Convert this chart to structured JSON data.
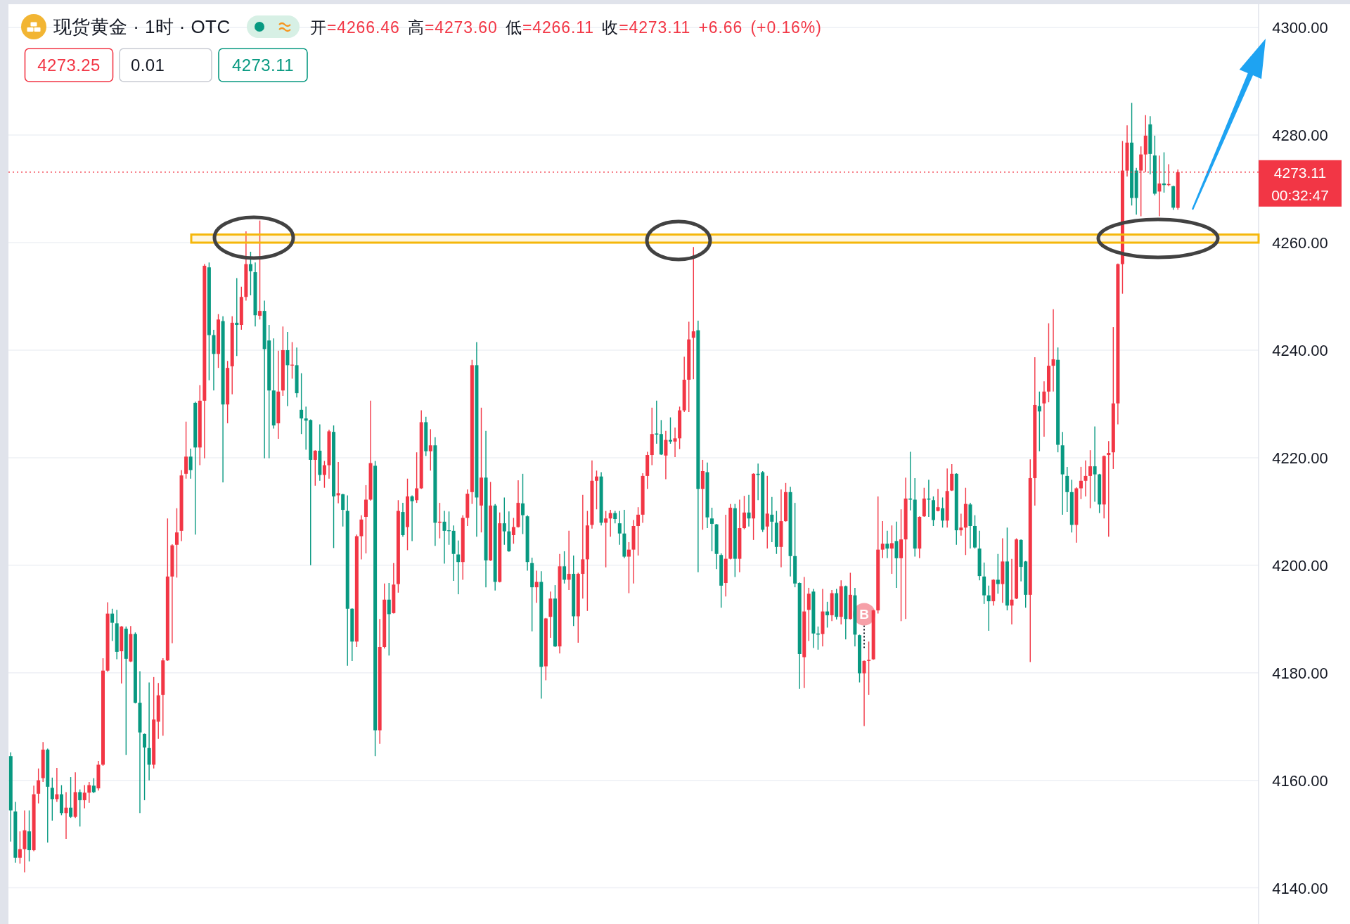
{
  "chart_data": {
    "type": "candlestick",
    "title": "现货黄金 · 1时 · OTC",
    "subtitle": "开=4266.46 高=4273.60 低=4266.11 收=4273.11 +6.66 (+0.16%)",
    "categories": [
      null,
      null,
      null,
      null,
      null,
      null,
      null,
      null,
      null,
      null,
      null,
      null,
      null,
      null,
      null,
      null,
      null,
      null,
      null,
      null,
      null,
      null,
      null,
      null,
      null,
      null,
      null,
      null,
      null,
      null,
      null,
      null,
      null,
      null,
      null,
      null,
      null,
      null,
      null,
      null,
      null,
      null,
      null,
      null,
      null,
      null,
      null,
      null,
      null,
      null,
      null,
      null,
      null,
      null,
      null,
      null,
      null,
      null,
      null,
      null,
      null,
      null,
      null,
      null,
      null,
      null,
      null,
      null,
      null,
      null,
      null,
      null,
      null,
      null,
      null,
      null,
      null,
      null,
      null,
      null,
      null,
      null,
      null,
      null,
      null,
      null,
      null,
      null,
      null,
      null,
      null,
      null,
      null,
      null,
      null,
      null,
      null,
      null,
      null,
      null,
      null,
      null,
      null,
      null,
      null,
      null,
      null,
      null,
      null,
      null,
      null,
      null,
      null,
      null,
      null,
      null,
      null,
      null,
      null,
      null,
      null,
      null,
      null,
      null,
      null,
      null,
      null,
      null,
      null,
      null,
      null,
      null,
      null,
      null,
      null,
      null,
      null,
      null,
      null,
      null,
      null,
      null,
      null,
      null,
      null,
      null,
      null,
      null,
      null,
      null,
      null,
      null,
      null,
      null,
      null,
      null,
      null,
      null,
      null,
      null,
      null,
      null,
      null,
      null,
      null,
      null,
      null,
      null,
      null,
      null,
      null,
      null,
      null,
      null,
      null,
      null,
      null,
      null,
      null,
      null,
      null,
      null,
      null,
      null,
      null,
      null,
      null,
      null,
      null,
      null,
      null,
      null,
      null,
      null,
      null,
      null,
      null,
      null,
      null,
      null,
      null,
      null,
      null,
      null,
      null,
      null,
      null,
      null,
      null,
      null,
      null,
      null,
      null,
      null,
      null,
      null,
      null,
      null,
      null,
      null,
      null,
      null,
      null,
      null,
      null,
      null,
      null,
      null,
      null,
      null,
      null,
      null,
      null,
      null,
      null,
      null,
      null,
      null,
      null,
      null,
      null,
      null,
      null,
      null,
      null,
      null,
      null,
      null,
      null,
      null,
      null,
      null,
      null,
      null,
      null,
      null,
      null,
      null,
      null,
      null,
      null,
      null,
      null,
      null,
      null,
      null,
      null,
      null,
      null,
      null,
      null
    ],
    "ohlc": [
      [
        4164.5,
        4165.2,
        4148.6,
        4154.4
      ],
      [
        4154.2,
        4156.0,
        4144.7,
        4145.6
      ],
      [
        4145.6,
        4150.5,
        4144.5,
        4147.2
      ],
      [
        4147.2,
        4154.4,
        4142.9,
        4150.7
      ],
      [
        4150.5,
        4154.4,
        4144.9,
        4147.0
      ],
      [
        4147.0,
        4159.0,
        4146.8,
        4157.4
      ],
      [
        4157.5,
        4162.2,
        4155.7,
        4160.0
      ],
      [
        4160.4,
        4167.1,
        4159.7,
        4165.7
      ],
      [
        4165.7,
        4165.9,
        4148.4,
        4158.8
      ],
      [
        4158.6,
        4160.5,
        4152.5,
        4156.5
      ],
      [
        4156.5,
        4162.3,
        4156.0,
        4157.4
      ],
      [
        4157.4,
        4159.1,
        4153.5,
        4153.9
      ],
      [
        4153.9,
        4157.8,
        4149.1,
        4154.9
      ],
      [
        4154.9,
        4160.6,
        4153.0,
        4153.2
      ],
      [
        4153.2,
        4161.5,
        4153.0,
        4157.8
      ],
      [
        4157.8,
        4158.3,
        4151.4,
        4156.3
      ],
      [
        4156.3,
        4159.1,
        4154.8,
        4157.7
      ],
      [
        4157.7,
        4159.7,
        4155.8,
        4159.1
      ],
      [
        4159.0,
        4160.4,
        4157.6,
        4157.8
      ],
      [
        4158.5,
        4163.6,
        4158.1,
        4162.9
      ],
      [
        4162.9,
        4182.7,
        4162.7,
        4180.4
      ],
      [
        4180.4,
        4193.1,
        4180.2,
        4191.0
      ],
      [
        4191.0,
        4191.9,
        4185.9,
        4189.3
      ],
      [
        4189.2,
        4191.7,
        4182.5,
        4183.9
      ],
      [
        4184.0,
        4188.7,
        4178.0,
        4188.6
      ],
      [
        4188.2,
        4188.6,
        4164.7,
        4182.6
      ],
      [
        4182.1,
        4188.7,
        4182.0,
        4187.2
      ],
      [
        4187.2,
        4187.5,
        4174.3,
        4174.4
      ],
      [
        4174.4,
        4180.3,
        4153.9,
        4168.9
      ],
      [
        4168.6,
        4168.7,
        4156.3,
        4166.1
      ],
      [
        4166.0,
        4178.2,
        4160.0,
        4162.9
      ],
      [
        4162.9,
        4179.2,
        4162.2,
        4171.3
      ],
      [
        4170.9,
        4178.1,
        4167.7,
        4175.8
      ],
      [
        4175.9,
        4182.7,
        4168.3,
        4182.3
      ],
      [
        4182.3,
        4208.7,
        4182.2,
        4197.9
      ],
      [
        4197.9,
        4203.9,
        4185.5,
        4203.7
      ],
      [
        4203.8,
        4210.6,
        4197.7,
        4206.1
      ],
      [
        4206.4,
        4217.7,
        4204.5,
        4216.7
      ],
      [
        4217.0,
        4226.7,
        4216.1,
        4220.2
      ],
      [
        4220.2,
        4221.7,
        4216.1,
        4217.7
      ],
      [
        4230.2,
        4230.4,
        4205.7,
        4221.9
      ],
      [
        4221.9,
        4233.5,
        4218.6,
        4230.6
      ],
      [
        4230.6,
        4256.0,
        4219.9,
        4255.7
      ],
      [
        4255.4,
        4256.3,
        4234.4,
        4242.8
      ],
      [
        4242.8,
        4243.8,
        4232.5,
        4239.3
      ],
      [
        4239.3,
        4246.7,
        4236.7,
        4245.7
      ],
      [
        4245.4,
        4246.3,
        4215.4,
        4229.9
      ],
      [
        4229.9,
        4238.0,
        4226.4,
        4236.7
      ],
      [
        4237.0,
        4246.3,
        4231.8,
        4245.1
      ],
      [
        4245.1,
        4253.4,
        4238.9,
        4244.7
      ],
      [
        4244.7,
        4251.8,
        4243.8,
        4249.9
      ],
      [
        4249.9,
        4262.1,
        4249.2,
        4256.0
      ],
      [
        4256.0,
        4258.3,
        4250.2,
        4254.7
      ],
      [
        4254.5,
        4256.3,
        4244.4,
        4246.5
      ],
      [
        4246.4,
        4264.1,
        4245.7,
        4247.3
      ],
      [
        4247.3,
        4249.2,
        4219.9,
        4240.2
      ],
      [
        4241.8,
        4244.7,
        4219.9,
        4232.5
      ],
      [
        4232.5,
        4242.2,
        4225.4,
        4226.0
      ],
      [
        4226.4,
        4239.9,
        4223.5,
        4232.3
      ],
      [
        4232.5,
        4244.4,
        4231.5,
        4240.0
      ],
      [
        4240.0,
        4243.4,
        4229.6,
        4237.2
      ],
      [
        4237.2,
        4241.5,
        4234.7,
        4237.3
      ],
      [
        4237.2,
        4240.5,
        4231.2,
        4232.0
      ],
      [
        4228.9,
        4235.7,
        4224.4,
        4227.3
      ],
      [
        4227.3,
        4229.5,
        4221.5,
        4226.9
      ],
      [
        4227.0,
        4227.1,
        4200.0,
        4219.6
      ],
      [
        4219.6,
        4221.4,
        4214.8,
        4221.3
      ],
      [
        4221.3,
        4226.2,
        4215.7,
        4216.8
      ],
      [
        4216.8,
        4219.4,
        4214.4,
        4218.6
      ],
      [
        4218.6,
        4225.2,
        4216.1,
        4224.9
      ],
      [
        4224.8,
        4226.0,
        4203.2,
        4212.8
      ],
      [
        4213.0,
        4219.2,
        4211.5,
        4213.4
      ],
      [
        4213.2,
        4213.3,
        4207.2,
        4210.3
      ],
      [
        4210.1,
        4213.0,
        4181.3,
        4191.9
      ],
      [
        4191.9,
        4192.0,
        4182.2,
        4185.8
      ],
      [
        4185.8,
        4205.7,
        4184.8,
        4205.4
      ],
      [
        4205.4,
        4209.3,
        4201.1,
        4208.5
      ],
      [
        4209.0,
        4214.9,
        4202.2,
        4212.2
      ],
      [
        4212.2,
        4230.6,
        4212.0,
        4219.0
      ],
      [
        4218.5,
        4219.4,
        4164.5,
        4169.3
      ],
      [
        4169.3,
        4190.0,
        4166.8,
        4184.8
      ],
      [
        4184.8,
        4196.6,
        4184.5,
        4193.6
      ],
      [
        4193.6,
        4196.7,
        4183.2,
        4190.9
      ],
      [
        4191.1,
        4200.4,
        4191.0,
        4196.4
      ],
      [
        4196.5,
        4212.1,
        4194.9,
        4210.1
      ],
      [
        4209.9,
        4211.6,
        4205.3,
        4205.6
      ],
      [
        4207.1,
        4216.1,
        4202.8,
        4212.8
      ],
      [
        4212.8,
        4213.0,
        4204.5,
        4211.9
      ],
      [
        4212.1,
        4221.0,
        4211.6,
        4214.3
      ],
      [
        4214.3,
        4228.8,
        4214.2,
        4226.6
      ],
      [
        4226.6,
        4227.6,
        4220.3,
        4221.2
      ],
      [
        4221.2,
        4225.3,
        4217.6,
        4222.3
      ],
      [
        4222.3,
        4223.8,
        4203.6,
        4207.9
      ],
      [
        4207.9,
        4211.6,
        4205.0,
        4208.1
      ],
      [
        4208.1,
        4210.1,
        4200.3,
        4206.4
      ],
      [
        4206.5,
        4210.0,
        4203.8,
        4206.4
      ],
      [
        4206.4,
        4207.4,
        4197.1,
        4202.1
      ],
      [
        4202.0,
        4204.6,
        4194.6,
        4200.6
      ],
      [
        4200.6,
        4209.3,
        4197.3,
        4208.8
      ],
      [
        4208.8,
        4214.1,
        4207.3,
        4213.3
      ],
      [
        4213.6,
        4238.2,
        4211.4,
        4237.2
      ],
      [
        4237.2,
        4241.5,
        4205.3,
        4212.6
      ],
      [
        4211.1,
        4229.3,
        4206.1,
        4216.3
      ],
      [
        4216.3,
        4225.0,
        4195.9,
        4200.9
      ],
      [
        4200.9,
        4215.5,
        4200.8,
        4211.1
      ],
      [
        4211.1,
        4211.4,
        4195.3,
        4196.9
      ],
      [
        4196.9,
        4209.8,
        4196.8,
        4207.8
      ],
      [
        4207.8,
        4212.6,
        4203.8,
        4206.3
      ],
      [
        4206.3,
        4210.0,
        4202.5,
        4202.6
      ],
      [
        4205.6,
        4208.8,
        4204.0,
        4207.1
      ],
      [
        4207.1,
        4215.8,
        4207.0,
        4211.6
      ],
      [
        4211.5,
        4217.0,
        4205.8,
        4209.3
      ],
      [
        4209.1,
        4209.3,
        4199.0,
        4200.6
      ],
      [
        4200.4,
        4201.4,
        4187.7,
        4195.9
      ],
      [
        4195.9,
        4199.0,
        4193.0,
        4196.9
      ],
      [
        4196.9,
        4198.9,
        4175.2,
        4181.1
      ],
      [
        4181.2,
        4190.2,
        4178.6,
        4190.1
      ],
      [
        4190.4,
        4195.1,
        4186.5,
        4193.8
      ],
      [
        4193.8,
        4196.3,
        4184.8,
        4184.9
      ],
      [
        4184.9,
        4202.1,
        4183.6,
        4199.8
      ],
      [
        4199.8,
        4202.6,
        4196.6,
        4197.3
      ],
      [
        4197.3,
        4206.4,
        4195.4,
        4198.4
      ],
      [
        4198.4,
        4201.8,
        4188.7,
        4190.5
      ],
      [
        4190.5,
        4198.6,
        4185.6,
        4198.4
      ],
      [
        4198.4,
        4213.1,
        4193.8,
        4201.1
      ],
      [
        4201.1,
        4210.1,
        4191.5,
        4207.4
      ],
      [
        4207.5,
        4219.5,
        4206.8,
        4215.7
      ],
      [
        4215.7,
        4217.6,
        4210.4,
        4216.5
      ],
      [
        4216.5,
        4217.3,
        4207.4,
        4207.9
      ],
      [
        4207.9,
        4210.1,
        4199.6,
        4208.7
      ],
      [
        4208.7,
        4210.3,
        4205.3,
        4209.7
      ],
      [
        4209.7,
        4210.1,
        4207.8,
        4208.6
      ],
      [
        4207.8,
        4210.1,
        4203.8,
        4205.9
      ],
      [
        4205.9,
        4210.3,
        4201.3,
        4201.6
      ],
      [
        4201.6,
        4204.3,
        4194.8,
        4202.9
      ],
      [
        4202.9,
        4208.4,
        4196.6,
        4207.3
      ],
      [
        4207.3,
        4210.8,
        4201.8,
        4209.4
      ],
      [
        4209.4,
        4217.1,
        4207.9,
        4216.6
      ],
      [
        4216.6,
        4221.1,
        4214.2,
        4220.5
      ],
      [
        4220.5,
        4229.3,
        4218.6,
        4224.4
      ],
      [
        4224.5,
        4230.6,
        4222.6,
        4224.3
      ],
      [
        4224.4,
        4227.0,
        4220.5,
        4220.6
      ],
      [
        4220.4,
        4225.0,
        4216.0,
        4223.3
      ],
      [
        4223.3,
        4227.5,
        4222.6,
        4223.0
      ],
      [
        4223.0,
        4225.6,
        4220.1,
        4223.6
      ],
      [
        4223.6,
        4229.5,
        4221.6,
        4228.8
      ],
      [
        4228.8,
        4238.8,
        4228.5,
        4234.5
      ],
      [
        4234.5,
        4245.3,
        4228.5,
        4242.0
      ],
      [
        4242.3,
        4259.2,
        4234.6,
        4243.5
      ],
      [
        4243.7,
        4245.5,
        4198.7,
        4214.2
      ],
      [
        4214.2,
        4219.6,
        4206.6,
        4217.5
      ],
      [
        4217.3,
        4219.1,
        4206.9,
        4208.9
      ],
      [
        4208.7,
        4210.7,
        4202.6,
        4207.7
      ],
      [
        4207.6,
        4207.7,
        4199.3,
        4202.1
      ],
      [
        4201.9,
        4202.2,
        4192.1,
        4196.2
      ],
      [
        4196.7,
        4209.4,
        4194.2,
        4201.2
      ],
      [
        4201.2,
        4211.4,
        4201.1,
        4210.7
      ],
      [
        4210.6,
        4211.4,
        4197.8,
        4201.2
      ],
      [
        4201.2,
        4212.2,
        4198.7,
        4206.9
      ],
      [
        4206.9,
        4212.9,
        4206.7,
        4209.8
      ],
      [
        4209.8,
        4213.1,
        4207.2,
        4208.7
      ],
      [
        4208.7,
        4217.1,
        4204.7,
        4217.0
      ],
      [
        4217.0,
        4218.9,
        4212.1,
        4216.8
      ],
      [
        4217.3,
        4217.5,
        4206.2,
        4206.6
      ],
      [
        4207.2,
        4216.6,
        4203.1,
        4209.6
      ],
      [
        4209.4,
        4212.7,
        4204.3,
        4208.1
      ],
      [
        4207.9,
        4210.1,
        4202.1,
        4203.4
      ],
      [
        4203.4,
        4214.1,
        4199.6,
        4208.2
      ],
      [
        4208.2,
        4215.3,
        4208.1,
        4213.6
      ],
      [
        4213.6,
        4214.6,
        4197.9,
        4201.7
      ],
      [
        4201.7,
        4211.6,
        4195.9,
        4196.6
      ],
      [
        4196.7,
        4196.8,
        4177.0,
        4183.5
      ],
      [
        4182.9,
        4197.8,
        4177.2,
        4191.4
      ],
      [
        4191.7,
        4195.8,
        4185.9,
        4194.7
      ],
      [
        4195.1,
        4195.6,
        4184.6,
        4187.3
      ],
      [
        4187.3,
        4188.6,
        4184.3,
        4187.1
      ],
      [
        4187.2,
        4195.6,
        4184.9,
        4191.4
      ],
      [
        4191.4,
        4193.2,
        4188.4,
        4190.7
      ],
      [
        4190.7,
        4195.4,
        4189.6,
        4194.8
      ],
      [
        4194.8,
        4195.6,
        4189.9,
        4190.4
      ],
      [
        4190.4,
        4197.2,
        4189.0,
        4196.1
      ],
      [
        4196.1,
        4196.2,
        4186.2,
        4190.0
      ],
      [
        4190.0,
        4198.6,
        4189.9,
        4194.5
      ],
      [
        4194.4,
        4195.8,
        4184.9,
        4187.1
      ],
      [
        4187.0,
        4187.1,
        4178.2,
        4179.9
      ],
      [
        4179.9,
        4182.3,
        4170.1,
        4182.2
      ],
      [
        4182.2,
        4185.8,
        4175.9,
        4182.4
      ],
      [
        4182.5,
        4191.7,
        4182.4,
        4191.6
      ],
      [
        4191.6,
        4212.8,
        4191.0,
        4202.9
      ],
      [
        4202.9,
        4208.2,
        4201.3,
        4204.0
      ],
      [
        4204.0,
        4206.4,
        4201.3,
        4203.1
      ],
      [
        4203.1,
        4207.4,
        4198.4,
        4204.1
      ],
      [
        4204.5,
        4208.1,
        4195.8,
        4201.3
      ],
      [
        4201.3,
        4210.4,
        4189.6,
        4204.8
      ],
      [
        4204.8,
        4216.3,
        4190.0,
        4212.4
      ],
      [
        4212.4,
        4221.1,
        4210.2,
        4212.2
      ],
      [
        4212.2,
        4216.2,
        4201.6,
        4203.1
      ],
      [
        4203.1,
        4209.1,
        4201.3,
        4209.0
      ],
      [
        4209.1,
        4214.4,
        4209.0,
        4212.4
      ],
      [
        4212.4,
        4215.9,
        4209.0,
        4212.2
      ],
      [
        4212.1,
        4212.8,
        4207.3,
        4208.4
      ],
      [
        4210.1,
        4214.2,
        4210.0,
        4210.8
      ],
      [
        4210.6,
        4212.6,
        4207.0,
        4208.3
      ],
      [
        4208.3,
        4218.0,
        4207.0,
        4213.8
      ],
      [
        4213.9,
        4218.8,
        4213.8,
        4217.0
      ],
      [
        4217.0,
        4217.1,
        4203.8,
        4206.5
      ],
      [
        4206.5,
        4209.6,
        4205.5,
        4207.0
      ],
      [
        4207.0,
        4214.4,
        4201.9,
        4211.4
      ],
      [
        4211.3,
        4211.6,
        4203.1,
        4207.3
      ],
      [
        4207.3,
        4209.3,
        4203.1,
        4203.3
      ],
      [
        4203.1,
        4206.4,
        4197.2,
        4198.0
      ],
      [
        4197.9,
        4200.5,
        4192.8,
        4194.4
      ],
      [
        4194.4,
        4196.2,
        4187.8,
        4193.3
      ],
      [
        4193.3,
        4197.4,
        4192.5,
        4197.3
      ],
      [
        4197.3,
        4202.1,
        4194.7,
        4196.5
      ],
      [
        4196.5,
        4205.0,
        4193.0,
        4200.7
      ],
      [
        4200.7,
        4207.0,
        4191.6,
        4192.5
      ],
      [
        4192.5,
        4201.2,
        4189.0,
        4193.6
      ],
      [
        4193.8,
        4205.0,
        4193.7,
        4204.8
      ],
      [
        4204.7,
        4204.8,
        4197.0,
        4199.7
      ],
      [
        4200.7,
        4200.8,
        4192.1,
        4194.5
      ],
      [
        4194.5,
        4219.7,
        4182.0,
        4216.2
      ],
      [
        4216.2,
        4238.7,
        4211.1,
        4229.8
      ],
      [
        4229.6,
        4232.3,
        4221.2,
        4228.6
      ],
      [
        4230.1,
        4234.2,
        4223.9,
        4232.3
      ],
      [
        4232.3,
        4245.0,
        4230.3,
        4237.1
      ],
      [
        4237.1,
        4247.6,
        4232.3,
        4238.3
      ],
      [
        4238.2,
        4240.5,
        4221.0,
        4222.4
      ],
      [
        4222.3,
        4224.8,
        4209.4,
        4216.9
      ],
      [
        4216.6,
        4218.3,
        4209.9,
        4213.6
      ],
      [
        4213.6,
        4215.9,
        4206.1,
        4207.5
      ],
      [
        4207.5,
        4214.5,
        4204.2,
        4214.3
      ],
      [
        4214.3,
        4218.3,
        4212.3,
        4215.7
      ],
      [
        4215.7,
        4219.5,
        4212.8,
        4216.6
      ],
      [
        4216.6,
        4221.4,
        4210.6,
        4218.4
      ],
      [
        4218.4,
        4225.8,
        4211.8,
        4216.9
      ],
      [
        4216.9,
        4217.0,
        4209.7,
        4211.3
      ],
      [
        4211.3,
        4220.4,
        4208.7,
        4220.3
      ],
      [
        4220.5,
        4223.1,
        4205.3,
        4220.9
      ],
      [
        4221.0,
        4244.3,
        4217.9,
        4230.1
      ],
      [
        4230.1,
        4256.1,
        4226.2,
        4256.0
      ],
      [
        4256.0,
        4278.9,
        4250.5,
        4273.4
      ],
      [
        4273.4,
        4281.8,
        4272.3,
        4278.6
      ],
      [
        4278.6,
        4286.0,
        4266.9,
        4268.3
      ],
      [
        4273.4,
        4273.9,
        4265.2,
        4268.3
      ],
      [
        4273.4,
        4277.9,
        4264.9,
        4276.4
      ],
      [
        4276.4,
        4283.7,
        4273.1,
        4279.9
      ],
      [
        4282.0,
        4283.5,
        4272.7,
        4276.5
      ],
      [
        4276.2,
        4279.9,
        4268.8,
        4269.1
      ],
      [
        4269.5,
        4276.2,
        4264.9,
        4271.0
      ],
      [
        4271.0,
        4276.8,
        4269.3,
        4270.7
      ],
      [
        4270.7,
        4274.6,
        4270.5,
        4270.9
      ],
      [
        4270.5,
        4270.6,
        4266.1,
        4266.5
      ],
      [
        4266.46,
        4273.6,
        4266.11,
        4273.11
      ],
      null,
      null,
      null,
      null,
      null,
      null,
      null,
      null,
      null,
      null,
      null,
      null,
      null,
      null,
      null,
      null,
      null
    ],
    "ylim": [
      4133.3,
      4304
    ],
    "yticks": [
      {
        "value": 4140,
        "label": "4140.00"
      },
      {
        "value": 4160,
        "label": "4160.00"
      },
      {
        "value": 4180,
        "label": "4180.00"
      },
      {
        "value": 4200,
        "label": "4200.00"
      },
      {
        "value": 4220,
        "label": "4220.00"
      },
      {
        "value": 4240,
        "label": "4240.00"
      },
      {
        "value": 4260,
        "label": "4260.00"
      },
      {
        "value": 4280,
        "label": "4280.00"
      },
      {
        "value": 4300,
        "label": "4300.00"
      }
    ],
    "grid": "y",
    "tick_labels": "y",
    "ref_lines": [
      {
        "axis": "y",
        "value": 4273.11,
        "label": "4273.11\n00:32:47",
        "color": "#f23645",
        "line_style": "dotted"
      }
    ],
    "bands": [
      {
        "axis": "y",
        "from": 4260,
        "to": 4261.5,
        "color": "#f5b70a"
      }
    ],
    "annotations": [
      "4273.25",
      "0.01",
      "4273.11",
      {
        "text": "B",
        "y": 4190.9
      }
    ]
  }
}
